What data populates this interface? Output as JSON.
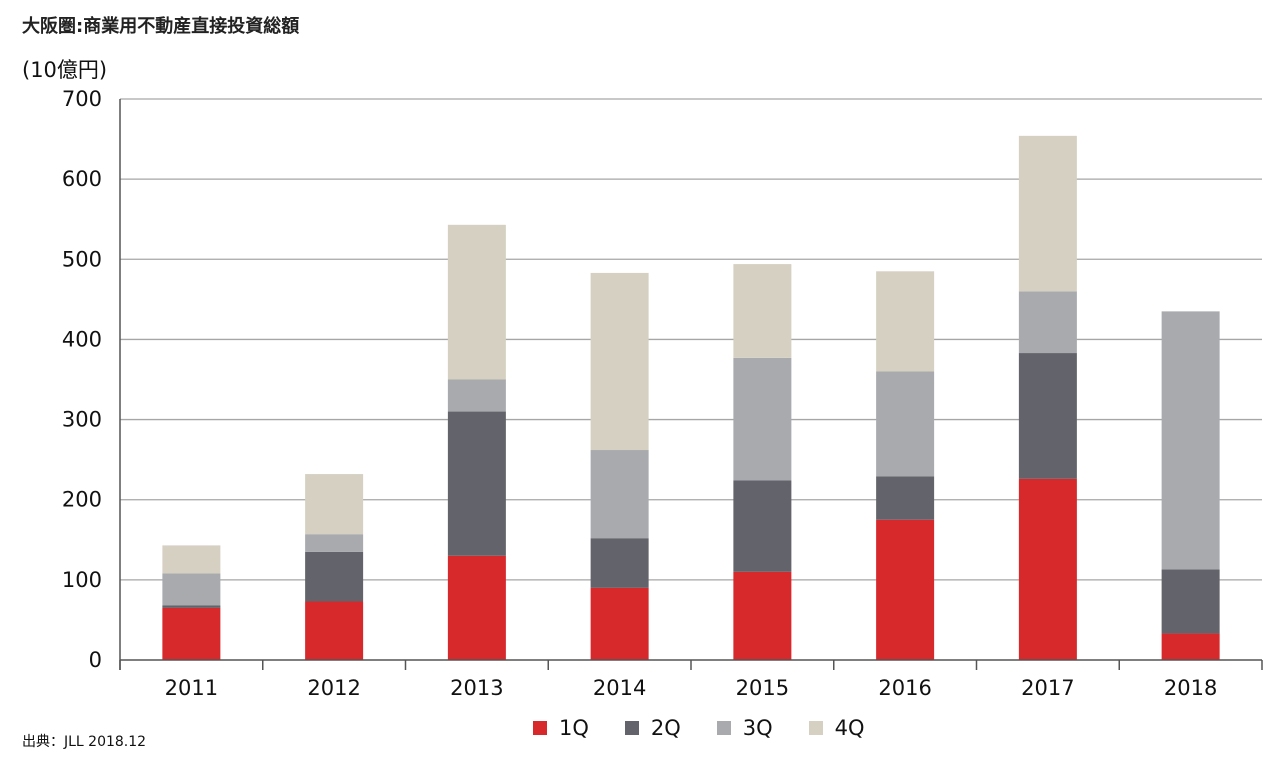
{
  "title": "大阪圏:商業用不動産直接投資総額",
  "unit_label": "(10億円)",
  "source": "出典：JLL 2018.12",
  "chart_data": {
    "type": "bar",
    "stacked": true,
    "categories": [
      "2011",
      "2012",
      "2013",
      "2014",
      "2015",
      "2016",
      "2017",
      "2018"
    ],
    "series": [
      {
        "name": "1Q",
        "color": "#d7282b",
        "values": [
          65,
          73,
          130,
          90,
          110,
          175,
          226,
          33
        ]
      },
      {
        "name": "2Q",
        "color": "#63636b",
        "values": [
          3,
          62,
          180,
          62,
          114,
          54,
          157,
          80
        ]
      },
      {
        "name": "3Q",
        "color": "#a8aaad",
        "values": [
          40,
          22,
          40,
          110,
          153,
          131,
          77,
          322
        ]
      },
      {
        "name": "4Q",
        "color": "#d6d0c3",
        "values": [
          35,
          75,
          193,
          221,
          117,
          125,
          194,
          0
        ]
      }
    ],
    "ylim": [
      0,
      700
    ],
    "yticks": [
      0,
      100,
      200,
      300,
      400,
      500,
      600,
      700
    ],
    "grid": true,
    "legend_position": "bottom"
  }
}
